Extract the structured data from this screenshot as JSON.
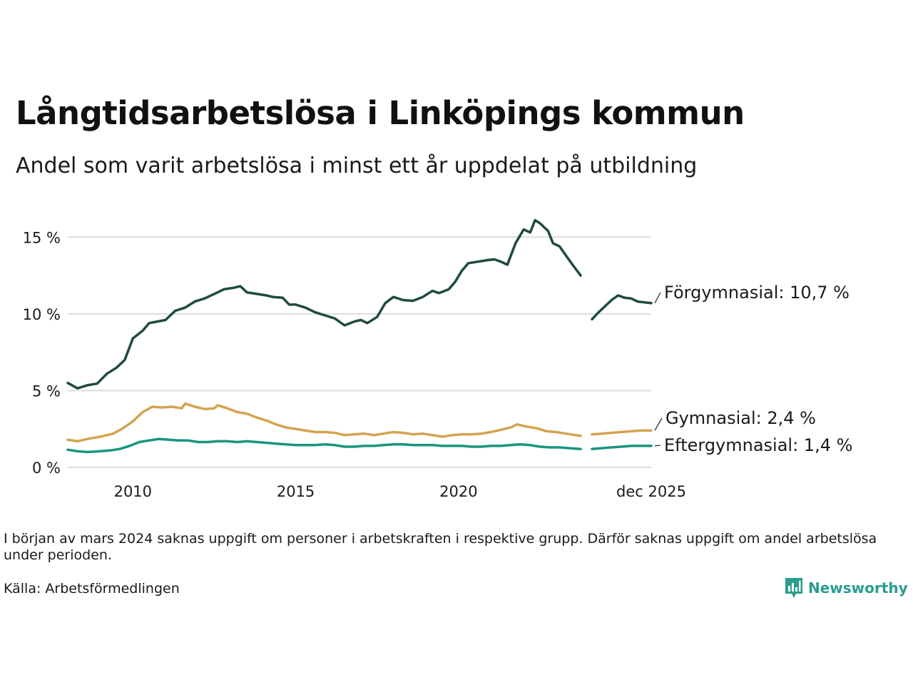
{
  "title": "Långtidsarbetslösa i Linköpings kommun",
  "subtitle": "Andel som varit arbetslösa i minst ett år uppdelat på utbildning",
  "footnote": "I början av mars 2024 saknas uppgift om personer i arbetskraften i respektive grupp. Därför saknas uppgift om andel arbetslösa under perioden.",
  "source": "Källa: Arbetsförmedlingen",
  "brand": "Newsworthy",
  "colors": {
    "brand": "#2a9d8f"
  },
  "chart_data": {
    "type": "line",
    "title": "Långtidsarbetslösa i Linköpings kommun",
    "xlabel": "",
    "ylabel": "",
    "xlim": [
      2008.0,
      2025.917
    ],
    "ylim": [
      0,
      16.5
    ],
    "x_ticks": [
      2010,
      2015,
      2020,
      2025.917
    ],
    "x_tick_labels": [
      "2010",
      "2015",
      "2020",
      "dec 2025"
    ],
    "y_ticks": [
      0,
      5,
      10,
      15
    ],
    "y_tick_labels": [
      "0 %",
      "5 %",
      "10 %",
      "15 %"
    ],
    "grid": true,
    "gap": [
      2023.75,
      2024.1
    ],
    "series": [
      {
        "name": "Förgymnasial",
        "end_label": "Förgymnasial: 10,7 %",
        "color": "#1f4a42",
        "points": [
          [
            2008.0,
            5.5
          ],
          [
            2008.3,
            5.15
          ],
          [
            2008.6,
            5.35
          ],
          [
            2008.9,
            5.45
          ],
          [
            2009.2,
            6.1
          ],
          [
            2009.5,
            6.5
          ],
          [
            2009.75,
            7.0
          ],
          [
            2010.0,
            8.4
          ],
          [
            2010.3,
            8.9
          ],
          [
            2010.5,
            9.4
          ],
          [
            2010.75,
            9.5
          ],
          [
            2011.0,
            9.6
          ],
          [
            2011.3,
            10.2
          ],
          [
            2011.6,
            10.4
          ],
          [
            2011.9,
            10.8
          ],
          [
            2012.2,
            11.0
          ],
          [
            2012.5,
            11.3
          ],
          [
            2012.8,
            11.6
          ],
          [
            2013.1,
            11.7
          ],
          [
            2013.3,
            11.8
          ],
          [
            2013.5,
            11.4
          ],
          [
            2013.8,
            11.3
          ],
          [
            2014.1,
            11.2
          ],
          [
            2014.3,
            11.1
          ],
          [
            2014.6,
            11.05
          ],
          [
            2014.8,
            10.6
          ],
          [
            2015.0,
            10.6
          ],
          [
            2015.3,
            10.4
          ],
          [
            2015.6,
            10.1
          ],
          [
            2015.9,
            9.9
          ],
          [
            2016.2,
            9.7
          ],
          [
            2016.5,
            9.25
          ],
          [
            2016.8,
            9.5
          ],
          [
            2017.0,
            9.6
          ],
          [
            2017.2,
            9.4
          ],
          [
            2017.5,
            9.8
          ],
          [
            2017.75,
            10.7
          ],
          [
            2018.0,
            11.1
          ],
          [
            2018.3,
            10.9
          ],
          [
            2018.6,
            10.85
          ],
          [
            2018.9,
            11.1
          ],
          [
            2019.2,
            11.5
          ],
          [
            2019.4,
            11.35
          ],
          [
            2019.7,
            11.6
          ],
          [
            2019.9,
            12.1
          ],
          [
            2020.1,
            12.8
          ],
          [
            2020.3,
            13.3
          ],
          [
            2020.6,
            13.4
          ],
          [
            2020.9,
            13.5
          ],
          [
            2021.1,
            13.55
          ],
          [
            2021.3,
            13.4
          ],
          [
            2021.5,
            13.2
          ],
          [
            2021.75,
            14.6
          ],
          [
            2022.0,
            15.5
          ],
          [
            2022.2,
            15.3
          ],
          [
            2022.35,
            16.1
          ],
          [
            2022.5,
            15.9
          ],
          [
            2022.75,
            15.4
          ],
          [
            2022.9,
            14.6
          ],
          [
            2023.1,
            14.4
          ],
          [
            2023.3,
            13.8
          ],
          [
            2023.5,
            13.2
          ],
          [
            2023.75,
            12.5
          ]
        ],
        "points2": [
          [
            2024.1,
            9.65
          ],
          [
            2024.3,
            10.1
          ],
          [
            2024.5,
            10.5
          ],
          [
            2024.7,
            10.9
          ],
          [
            2024.9,
            11.2
          ],
          [
            2025.1,
            11.05
          ],
          [
            2025.3,
            11.0
          ],
          [
            2025.5,
            10.8
          ],
          [
            2025.7,
            10.75
          ],
          [
            2025.917,
            10.7
          ]
        ]
      },
      {
        "name": "Gymnasial",
        "end_label": "Gymnasial:  2,4 %",
        "color": "#d4a350",
        "points": [
          [
            2008.0,
            1.8
          ],
          [
            2008.3,
            1.7
          ],
          [
            2008.6,
            1.85
          ],
          [
            2009.0,
            2.0
          ],
          [
            2009.4,
            2.2
          ],
          [
            2009.7,
            2.55
          ],
          [
            2010.0,
            3.0
          ],
          [
            2010.3,
            3.6
          ],
          [
            2010.6,
            3.95
          ],
          [
            2010.9,
            3.9
          ],
          [
            2011.2,
            3.95
          ],
          [
            2011.5,
            3.85
          ],
          [
            2011.6,
            4.15
          ],
          [
            2011.9,
            3.95
          ],
          [
            2012.2,
            3.8
          ],
          [
            2012.5,
            3.85
          ],
          [
            2012.6,
            4.05
          ],
          [
            2012.9,
            3.85
          ],
          [
            2013.2,
            3.6
          ],
          [
            2013.5,
            3.5
          ],
          [
            2013.8,
            3.25
          ],
          [
            2014.1,
            3.05
          ],
          [
            2014.4,
            2.8
          ],
          [
            2014.7,
            2.6
          ],
          [
            2015.0,
            2.5
          ],
          [
            2015.3,
            2.4
          ],
          [
            2015.6,
            2.3
          ],
          [
            2015.9,
            2.3
          ],
          [
            2016.2,
            2.25
          ],
          [
            2016.5,
            2.1
          ],
          [
            2016.8,
            2.15
          ],
          [
            2017.1,
            2.2
          ],
          [
            2017.4,
            2.1
          ],
          [
            2017.7,
            2.2
          ],
          [
            2018.0,
            2.3
          ],
          [
            2018.3,
            2.25
          ],
          [
            2018.6,
            2.15
          ],
          [
            2018.9,
            2.2
          ],
          [
            2019.2,
            2.1
          ],
          [
            2019.5,
            2.0
          ],
          [
            2019.8,
            2.1
          ],
          [
            2020.1,
            2.15
          ],
          [
            2020.4,
            2.15
          ],
          [
            2020.7,
            2.2
          ],
          [
            2021.0,
            2.3
          ],
          [
            2021.3,
            2.45
          ],
          [
            2021.6,
            2.6
          ],
          [
            2021.8,
            2.8
          ],
          [
            2022.1,
            2.65
          ],
          [
            2022.4,
            2.55
          ],
          [
            2022.7,
            2.35
          ],
          [
            2023.0,
            2.3
          ],
          [
            2023.3,
            2.2
          ],
          [
            2023.6,
            2.1
          ],
          [
            2023.75,
            2.05
          ]
        ],
        "points2": [
          [
            2024.1,
            2.15
          ],
          [
            2024.4,
            2.2
          ],
          [
            2024.7,
            2.25
          ],
          [
            2025.0,
            2.3
          ],
          [
            2025.3,
            2.35
          ],
          [
            2025.6,
            2.4
          ],
          [
            2025.917,
            2.4
          ]
        ]
      },
      {
        "name": "Eftergymnasial",
        "end_label": "Eftergymnasial:  1,4 %",
        "color": "#1a9481",
        "points": [
          [
            2008.0,
            1.15
          ],
          [
            2008.3,
            1.05
          ],
          [
            2008.6,
            1.0
          ],
          [
            2009.0,
            1.05
          ],
          [
            2009.3,
            1.1
          ],
          [
            2009.6,
            1.2
          ],
          [
            2009.9,
            1.4
          ],
          [
            2010.2,
            1.65
          ],
          [
            2010.5,
            1.75
          ],
          [
            2010.8,
            1.85
          ],
          [
            2011.1,
            1.8
          ],
          [
            2011.4,
            1.75
          ],
          [
            2011.7,
            1.75
          ],
          [
            2012.0,
            1.65
          ],
          [
            2012.3,
            1.65
          ],
          [
            2012.6,
            1.7
          ],
          [
            2012.9,
            1.7
          ],
          [
            2013.2,
            1.65
          ],
          [
            2013.5,
            1.7
          ],
          [
            2013.8,
            1.65
          ],
          [
            2014.1,
            1.6
          ],
          [
            2014.4,
            1.55
          ],
          [
            2014.7,
            1.5
          ],
          [
            2015.0,
            1.45
          ],
          [
            2015.3,
            1.45
          ],
          [
            2015.6,
            1.45
          ],
          [
            2015.9,
            1.5
          ],
          [
            2016.2,
            1.45
          ],
          [
            2016.5,
            1.35
          ],
          [
            2016.8,
            1.35
          ],
          [
            2017.1,
            1.4
          ],
          [
            2017.4,
            1.4
          ],
          [
            2017.7,
            1.45
          ],
          [
            2018.0,
            1.5
          ],
          [
            2018.3,
            1.5
          ],
          [
            2018.6,
            1.45
          ],
          [
            2018.9,
            1.45
          ],
          [
            2019.2,
            1.45
          ],
          [
            2019.5,
            1.4
          ],
          [
            2019.8,
            1.4
          ],
          [
            2020.1,
            1.4
          ],
          [
            2020.4,
            1.35
          ],
          [
            2020.7,
            1.35
          ],
          [
            2021.0,
            1.4
          ],
          [
            2021.3,
            1.4
          ],
          [
            2021.6,
            1.45
          ],
          [
            2021.9,
            1.5
          ],
          [
            2022.2,
            1.45
          ],
          [
            2022.5,
            1.35
          ],
          [
            2022.8,
            1.3
          ],
          [
            2023.1,
            1.3
          ],
          [
            2023.4,
            1.25
          ],
          [
            2023.75,
            1.2
          ]
        ],
        "points2": [
          [
            2024.1,
            1.2
          ],
          [
            2024.4,
            1.25
          ],
          [
            2024.7,
            1.3
          ],
          [
            2025.0,
            1.35
          ],
          [
            2025.3,
            1.4
          ],
          [
            2025.6,
            1.4
          ],
          [
            2025.917,
            1.4
          ]
        ]
      }
    ]
  }
}
